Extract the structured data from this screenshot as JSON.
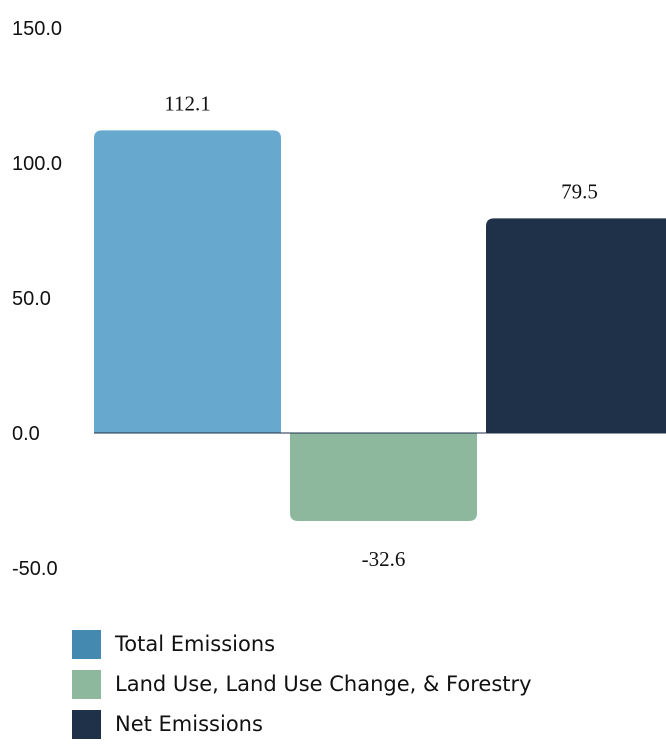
{
  "chart_data": {
    "type": "bar",
    "categories": [
      "Total Emissions",
      "Land Use, Land Use Change, & Forestry",
      "Net Emissions"
    ],
    "values": [
      112.1,
      -32.6,
      79.5
    ],
    "value_labels": [
      "112.1",
      "-32.6",
      "79.5"
    ],
    "bar_colors": [
      "#67a9ce",
      "#8db89e",
      "#1e3148"
    ],
    "legend_colors": [
      "#4489b0",
      "#8db89e",
      "#1e3148"
    ],
    "yticks": [
      "150.0",
      "100.0",
      "50.0",
      "0.0",
      "-50.0"
    ],
    "ylim": [
      -50,
      150
    ],
    "grid": false,
    "legend_position": "bottom-left"
  },
  "legend": {
    "items": [
      {
        "label": "Total Emissions"
      },
      {
        "label": "Land Use, Land Use Change, & Forestry"
      },
      {
        "label": "Net Emissions"
      }
    ]
  }
}
